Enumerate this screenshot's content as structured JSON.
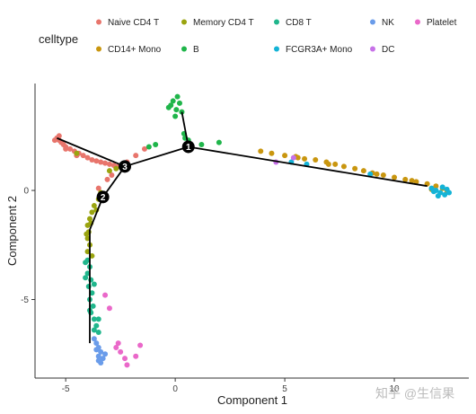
{
  "chart_data": {
    "type": "scatter",
    "title": "",
    "xlabel": "Component 1",
    "ylabel": "Component 2",
    "xlim": [
      -6.4,
      13.4
    ],
    "ylim": [
      -8.6,
      4.9
    ],
    "xticks": [
      -5,
      0,
      5,
      10
    ],
    "yticks": [
      -5,
      0
    ],
    "legend": {
      "title": "celltype",
      "placement": "top",
      "entries": [
        {
          "name": "Naive CD4 T",
          "color": "#e8756c"
        },
        {
          "name": "Memory CD4 T",
          "color": "#9aa40f"
        },
        {
          "name": "CD8 T",
          "color": "#20b68c"
        },
        {
          "name": "NK",
          "color": "#6a9cea"
        },
        {
          "name": "Platelet",
          "color": "#ea68c9"
        },
        {
          "name": "CD14+ Mono",
          "color": "#c9960f"
        },
        {
          "name": "B",
          "color": "#1fb54a"
        },
        {
          "name": "FCGR3A+ Mono",
          "color": "#14b3d6"
        },
        {
          "name": "DC",
          "color": "#c772e8"
        }
      ]
    },
    "trajectory": {
      "color": "#000000",
      "edges": [
        [
          [
            -5.4,
            2.4
          ],
          [
            -2.3,
            1.1
          ]
        ],
        [
          [
            -2.3,
            1.1
          ],
          [
            0.6,
            2.0
          ]
        ],
        [
          [
            0.6,
            2.0
          ],
          [
            0.3,
            3.6
          ]
        ],
        [
          [
            0.6,
            2.0
          ],
          [
            11.5,
            0.2
          ]
        ],
        [
          [
            -2.3,
            1.1
          ],
          [
            -3.3,
            -0.3
          ]
        ],
        [
          [
            -3.3,
            -0.3
          ],
          [
            -3.9,
            -1.8
          ]
        ],
        [
          [
            -3.9,
            -1.8
          ],
          [
            -3.9,
            -7.0
          ]
        ]
      ],
      "branch_points": [
        {
          "label": "1",
          "x": 0.6,
          "y": 2.0
        },
        {
          "label": "2",
          "x": -3.3,
          "y": -0.3
        },
        {
          "label": "3",
          "x": -2.3,
          "y": 1.1
        }
      ]
    },
    "clusters": [
      {
        "celltype": "Naive CD4 T",
        "points": [
          [
            -5.4,
            2.4
          ],
          [
            -5.3,
            2.3
          ],
          [
            -5.2,
            2.2
          ],
          [
            -5.1,
            2.1
          ],
          [
            -5.0,
            2.0
          ],
          [
            -4.8,
            1.9
          ],
          [
            -4.6,
            1.8
          ],
          [
            -4.4,
            1.7
          ],
          [
            -4.2,
            1.6
          ],
          [
            -4.0,
            1.5
          ],
          [
            -3.8,
            1.4
          ],
          [
            -3.6,
            1.35
          ],
          [
            -3.4,
            1.3
          ],
          [
            -3.2,
            1.25
          ],
          [
            -3.0,
            1.2
          ],
          [
            -2.8,
            1.15
          ],
          [
            -2.6,
            1.1
          ],
          [
            -2.2,
            1.3
          ],
          [
            -1.8,
            1.6
          ],
          [
            -1.4,
            1.9
          ],
          [
            -5.3,
            2.5
          ],
          [
            -5.5,
            2.3
          ],
          [
            -5.0,
            1.9
          ],
          [
            -4.5,
            1.6
          ],
          [
            -3.1,
            0.5
          ],
          [
            -3.5,
            0.1
          ],
          [
            -2.9,
            0.7
          ]
        ]
      },
      {
        "celltype": "Memory CD4 T",
        "points": [
          [
            -3.4,
            -0.1
          ],
          [
            -3.5,
            -0.4
          ],
          [
            -3.7,
            -0.7
          ],
          [
            -3.8,
            -1.0
          ],
          [
            -3.9,
            -1.3
          ],
          [
            -4.0,
            -1.6
          ],
          [
            -3.95,
            -1.9
          ],
          [
            -4.0,
            -2.2
          ],
          [
            -3.9,
            -2.5
          ],
          [
            -4.0,
            -2.8
          ],
          [
            -3.8,
            -3.0
          ],
          [
            -3.2,
            -0.2
          ],
          [
            -3.6,
            -0.9
          ],
          [
            -4.05,
            -2.0
          ],
          [
            -3.85,
            -1.5
          ],
          [
            -3.0,
            0.9
          ],
          [
            -2.7,
            1.0
          ],
          [
            -4.5,
            1.7
          ]
        ]
      },
      {
        "celltype": "CD8 T",
        "points": [
          [
            -4.0,
            -3.2
          ],
          [
            -3.9,
            -3.5
          ],
          [
            -4.0,
            -3.8
          ],
          [
            -3.85,
            -4.1
          ],
          [
            -3.95,
            -4.4
          ],
          [
            -3.8,
            -4.7
          ],
          [
            -3.9,
            -5.0
          ],
          [
            -3.75,
            -5.3
          ],
          [
            -3.85,
            -5.6
          ],
          [
            -3.7,
            -5.9
          ],
          [
            -3.6,
            -6.2
          ],
          [
            -3.5,
            -6.5
          ],
          [
            -4.1,
            -4.0
          ],
          [
            -3.7,
            -4.3
          ],
          [
            -3.9,
            -5.5
          ],
          [
            -3.5,
            -5.9
          ],
          [
            -3.7,
            -6.4
          ],
          [
            -4.1,
            -3.3
          ]
        ]
      },
      {
        "celltype": "NK",
        "points": [
          [
            -3.7,
            -6.8
          ],
          [
            -3.6,
            -7.0
          ],
          [
            -3.5,
            -7.2
          ],
          [
            -3.4,
            -7.4
          ],
          [
            -3.5,
            -7.6
          ],
          [
            -3.3,
            -7.7
          ],
          [
            -3.6,
            -7.3
          ],
          [
            -3.4,
            -7.9
          ],
          [
            -3.2,
            -7.5
          ],
          [
            -3.5,
            -7.8
          ]
        ]
      },
      {
        "celltype": "Platelet",
        "points": [
          [
            -3.2,
            -4.8
          ],
          [
            -3.0,
            -5.4
          ],
          [
            -2.6,
            -7.0
          ],
          [
            -2.5,
            -7.4
          ],
          [
            -2.3,
            -7.7
          ],
          [
            -2.2,
            -8.0
          ],
          [
            -1.6,
            -7.1
          ],
          [
            -2.7,
            -7.2
          ],
          [
            -1.8,
            -7.6
          ]
        ]
      },
      {
        "celltype": "CD14+ Mono",
        "points": [
          [
            3.9,
            1.8
          ],
          [
            4.4,
            1.7
          ],
          [
            5.0,
            1.6
          ],
          [
            5.5,
            1.55
          ],
          [
            5.9,
            1.45
          ],
          [
            6.4,
            1.4
          ],
          [
            6.9,
            1.3
          ],
          [
            7.3,
            1.2
          ],
          [
            7.7,
            1.1
          ],
          [
            8.2,
            1.0
          ],
          [
            8.6,
            0.9
          ],
          [
            9.0,
            0.8
          ],
          [
            9.5,
            0.7
          ],
          [
            10.0,
            0.6
          ],
          [
            10.5,
            0.5
          ],
          [
            11.0,
            0.4
          ],
          [
            11.5,
            0.3
          ],
          [
            11.9,
            0.2
          ],
          [
            12.2,
            0.1
          ],
          [
            12.4,
            0.0
          ],
          [
            11.7,
            0.05
          ],
          [
            10.8,
            0.45
          ],
          [
            9.2,
            0.75
          ],
          [
            7.0,
            1.2
          ],
          [
            5.6,
            1.5
          ]
        ]
      },
      {
        "celltype": "B",
        "points": [
          [
            0.0,
            3.4
          ],
          [
            -0.2,
            3.9
          ],
          [
            0.1,
            4.3
          ],
          [
            -0.1,
            4.1
          ],
          [
            0.3,
            3.6
          ],
          [
            0.2,
            4.0
          ],
          [
            -0.3,
            3.8
          ],
          [
            0.05,
            3.7
          ],
          [
            0.4,
            2.6
          ],
          [
            0.45,
            2.4
          ],
          [
            -0.9,
            2.1
          ],
          [
            -1.2,
            2.0
          ],
          [
            1.2,
            2.1
          ],
          [
            2.0,
            2.2
          ],
          [
            0.6,
            2.3
          ]
        ]
      },
      {
        "celltype": "FCGR3A+ Mono",
        "points": [
          [
            11.7,
            0.1
          ],
          [
            11.9,
            0.0
          ],
          [
            12.1,
            -0.1
          ],
          [
            12.3,
            -0.2
          ],
          [
            12.0,
            -0.25
          ],
          [
            12.4,
            0.05
          ],
          [
            11.8,
            -0.05
          ],
          [
            12.2,
            0.15
          ],
          [
            12.5,
            -0.1
          ],
          [
            5.3,
            1.3
          ],
          [
            6.0,
            1.2
          ],
          [
            8.9,
            0.75
          ]
        ]
      },
      {
        "celltype": "DC",
        "points": [
          [
            5.4,
            1.5
          ],
          [
            4.6,
            1.3
          ]
        ]
      }
    ]
  },
  "watermark": "知乎 @生信果"
}
